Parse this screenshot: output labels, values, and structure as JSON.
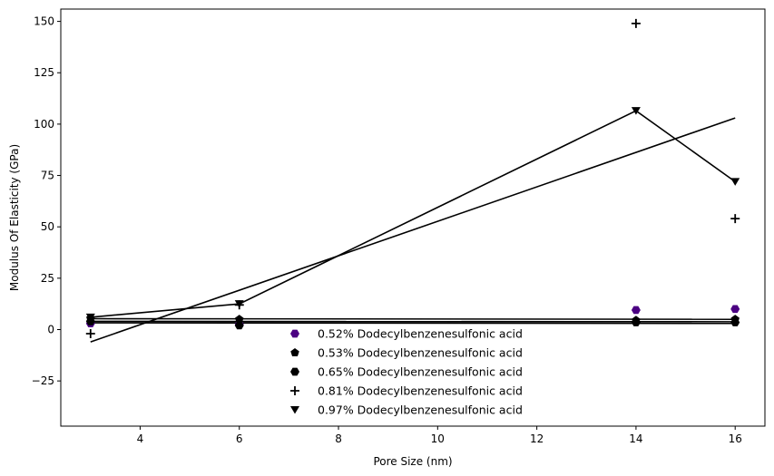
{
  "chart_data": {
    "type": "scatter",
    "xlabel": "Pore Size (nm)",
    "ylabel": "Modulus Of Elasticity (GPa)",
    "xlim": [
      2.4,
      16.6
    ],
    "ylim": [
      -47,
      156
    ],
    "xticks": [
      4,
      6,
      8,
      10,
      12,
      14,
      16
    ],
    "yticks": [
      -25,
      0,
      25,
      50,
      75,
      100,
      125,
      150
    ],
    "grid": false,
    "legend_position": "bottom-center",
    "x": [
      3,
      6,
      14,
      16
    ],
    "series": [
      {
        "name": "0.52% Dodecylbenzenesulfonic acid",
        "marker": "hexagon",
        "color": "#4b0082",
        "values": [
          3.0,
          2.5,
          9.5,
          10.0
        ],
        "fit": [
          4.0,
          3.8
        ]
      },
      {
        "name": "0.53% Dodecylbenzenesulfonic acid",
        "marker": "pentagon",
        "color": "#000000",
        "values": [
          5.5,
          5.0,
          4.5,
          5.0
        ],
        "fit": [
          5.3,
          5.0
        ]
      },
      {
        "name": "0.65% Dodecylbenzenesulfonic acid",
        "marker": "hexagon",
        "color": "#000000",
        "values": [
          4.0,
          2.0,
          3.5,
          3.5
        ],
        "fit": [
          3.3,
          3.0
        ]
      },
      {
        "name": "0.81% Dodecylbenzenesulfonic acid",
        "marker": "plus",
        "color": "#000000",
        "values": [
          -2.0,
          12.0,
          149.0,
          54.0
        ],
        "fit": [
          -6.0,
          103.0
        ]
      },
      {
        "name": "0.97% Dodecylbenzenesulfonic acid",
        "marker": "triangle-down",
        "color": "#000000",
        "values": [
          6.0,
          12.5,
          106.5,
          72.0
        ],
        "connect": true
      }
    ]
  }
}
